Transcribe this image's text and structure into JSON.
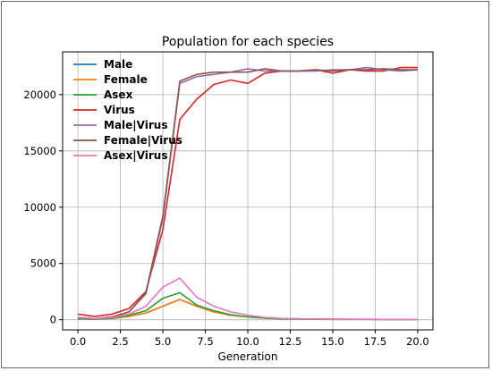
{
  "chart_data": {
    "type": "line",
    "title": "Population for each species",
    "xlabel": "Generation",
    "ylabel": "",
    "xlim": [
      -0.9,
      20.9
    ],
    "ylim": [
      -900,
      23800
    ],
    "xticks": [
      0,
      2.5,
      5,
      7.5,
      10,
      12.5,
      15,
      17.5,
      20
    ],
    "xtick_labels": [
      "0.0",
      "2.5",
      "5.0",
      "7.5",
      "10.0",
      "12.5",
      "15.0",
      "17.5",
      "20.0"
    ],
    "yticks": [
      0,
      5000,
      10000,
      15000,
      20000
    ],
    "ytick_labels": [
      "0",
      "5000",
      "10000",
      "15000",
      "20000"
    ],
    "grid": true,
    "legend_position": "top-left",
    "x": [
      0,
      1,
      2,
      3,
      4,
      5,
      6,
      7,
      8,
      9,
      10,
      11,
      12,
      13,
      14,
      15,
      16,
      17,
      18,
      19,
      20
    ],
    "series": [
      {
        "name": "Male",
        "color": "#1f77b4",
        "values": [
          100,
          60,
          120,
          300,
          600,
          1200,
          1800,
          1200,
          700,
          400,
          250,
          150,
          100,
          80,
          60,
          50,
          40,
          40,
          30,
          30,
          30
        ]
      },
      {
        "name": "Female",
        "color": "#ff7f0e",
        "values": [
          100,
          60,
          120,
          300,
          600,
          1200,
          1800,
          1200,
          700,
          400,
          250,
          150,
          100,
          80,
          60,
          50,
          40,
          40,
          30,
          30,
          30
        ]
      },
      {
        "name": "Asex",
        "color": "#2ca02c",
        "values": [
          100,
          50,
          150,
          400,
          800,
          1900,
          2400,
          1300,
          800,
          450,
          250,
          150,
          80,
          50,
          40,
          30,
          30,
          30,
          30,
          30,
          30
        ]
      },
      {
        "name": "Virus",
        "color": "#d62728",
        "values": [
          500,
          300,
          500,
          1000,
          2500,
          8000,
          17800,
          19600,
          20900,
          21300,
          21000,
          21900,
          22100,
          22100,
          22200,
          21900,
          22200,
          22100,
          22100,
          22400,
          22400
        ]
      },
      {
        "name": "Male|Virus",
        "color": "#9467bd",
        "values": [
          200,
          100,
          250,
          700,
          2300,
          9000,
          21000,
          21600,
          21800,
          22000,
          22300,
          22100,
          22100,
          22100,
          22100,
          22200,
          22200,
          22400,
          22200,
          22100,
          22200
        ]
      },
      {
        "name": "Female|Virus",
        "color": "#8c564b",
        "values": [
          200,
          100,
          250,
          700,
          2400,
          9200,
          21200,
          21800,
          22000,
          22000,
          22000,
          22300,
          22100,
          22100,
          22200,
          22100,
          22200,
          22200,
          22300,
          22200,
          22200
        ]
      },
      {
        "name": "Asex|Virus",
        "color": "#e377c2",
        "values": [
          200,
          100,
          200,
          500,
          1200,
          2900,
          3700,
          2000,
          1200,
          700,
          400,
          200,
          120,
          80,
          50,
          40,
          30,
          30,
          30,
          30,
          30
        ]
      }
    ]
  }
}
